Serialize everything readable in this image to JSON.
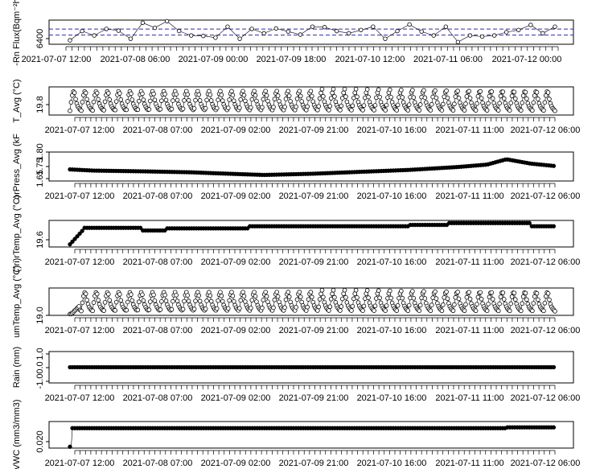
{
  "chart_data": [
    {
      "type": "scatter",
      "ylabel": "-Rn Flux(Bqm⁻²h",
      "y_ticks": [
        "6400"
      ],
      "x_ticks": [
        "2021-07-07 12:00",
        "2021-07-08 06:00",
        "2021-07-09 00:00",
        "2021-07-09 18:00",
        "2021-07-10 12:00",
        "2021-07-11 06:00",
        "2021-07-12 00:00"
      ],
      "reference_lines": "dashed blue horizontal lines",
      "line_color": "#1a1aa0",
      "point_style": "open circles connected by lines",
      "points_y": [
        6398,
        6440,
        6420,
        6450,
        6442,
        6405,
        6478,
        6455,
        6485,
        6440,
        6420,
        6418,
        6410,
        6460,
        6405,
        6450,
        6430,
        6452,
        6438,
        6424,
        6460,
        6458,
        6440,
        6430,
        6445,
        6460,
        6405,
        6440,
        6470,
        6438,
        6420,
        6460,
        6390,
        6420,
        6415,
        6420,
        6435,
        6445,
        6468,
        6430,
        6460
      ]
    },
    {
      "type": "scatter",
      "ylabel": "T_Avg (°C)",
      "y_ticks": [
        "19.8"
      ],
      "x_ticks": [
        "2021-07-07 12:00",
        "2021-07-08 07:00",
        "2021-07-09 02:00",
        "2021-07-09 21:00",
        "2021-07-10 16:00",
        "2021-07-11 11:00",
        "2021-07-12 06:00"
      ],
      "pattern": "daily oscillation, about 43 cycles, open circles"
    },
    {
      "type": "scatter",
      "ylabel": "orPress_Avg (kF",
      "y_ticks": [
        "1.65",
        "1.75",
        "1.80"
      ],
      "x_ticks": [
        "2021-07-07 12:00",
        "2021-07-08 07:00",
        "2021-07-09 02:00",
        "2021-07-09 21:00",
        "2021-07-10 16:00",
        "2021-07-11 11:00",
        "2021-07-12 06:00"
      ],
      "trend_t": [
        0,
        0.05,
        0.15,
        0.25,
        0.3,
        0.4,
        0.5,
        0.6,
        0.7,
        0.8,
        0.86,
        0.9,
        0.95,
        1.0
      ],
      "trend_v": [
        1.728,
        1.723,
        1.72,
        1.716,
        1.712,
        1.705,
        1.71,
        1.718,
        1.726,
        1.738,
        1.748,
        1.77,
        1.752,
        1.742
      ]
    },
    {
      "type": "scatter",
      "ylabel": "(°ri)rTemp_Avg (°C)",
      "y_ticks": [
        "19.6"
      ],
      "x_ticks": [
        "2021-07-07 12:00",
        "2021-07-08 07:00",
        "2021-07-09 02:00",
        "2021-07-09 21:00",
        "2021-07-10 16:00",
        "2021-07-11 11:00",
        "2021-07-12 06:00"
      ],
      "pattern": "step-like plateau after initial rise"
    },
    {
      "type": "scatter",
      "ylabel": "umTemp_Avg (°C)",
      "y_ticks": [
        "19.0"
      ],
      "x_ticks": [
        "2021-07-07 12:00",
        "2021-07-08 07:00",
        "2021-07-09 02:00",
        "2021-07-09 21:00",
        "2021-07-10 16:00",
        "2021-07-11 11:00",
        "2021-07-12 06:00"
      ],
      "pattern": "daily oscillation, about 43 cycles, open circles"
    },
    {
      "type": "scatter",
      "ylabel": "Rain (mm)",
      "y_ticks": [
        "-1.0",
        "0.0",
        "1.0"
      ],
      "ylim": [
        -1.0,
        1.0
      ],
      "x_ticks": [
        "2021-07-07 12:00",
        "2021-07-08 07:00",
        "2021-07-09 02:00",
        "2021-07-09 21:00",
        "2021-07-10 16:00",
        "2021-07-11 11:00",
        "2021-07-12 06:00"
      ],
      "values": "constant 0.0"
    },
    {
      "type": "scatter",
      "ylabel": "VWC (mm3/mm3)",
      "y_ticks": [
        "0.020"
      ],
      "x_ticks": [
        "2021-07-07 12:00",
        "2021-07-08 07:00",
        "2021-07-09 02:00",
        "2021-07-09 21:00",
        "2021-07-10 16:00",
        "2021-07-11 11:00",
        "2021-07-12 06:00"
      ],
      "pattern": "near-constant after initial jump"
    }
  ]
}
